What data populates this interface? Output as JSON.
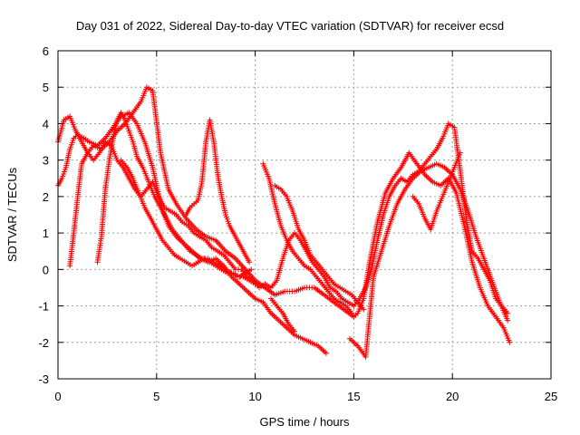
{
  "chart_data": {
    "type": "scatter",
    "title": "Day 031 of 2022, Sidereal Day-to-day VTEC variation (SDTVAR) for receiver ecsd",
    "xlabel": "GPS time / hours",
    "ylabel": "SDTVAR / TECUs",
    "xlim": [
      0,
      25
    ],
    "ylim": [
      -3,
      6
    ],
    "xticks": [
      0,
      5,
      10,
      15,
      20,
      25
    ],
    "yticks": [
      -3,
      -2,
      -1,
      0,
      1,
      2,
      3,
      4,
      5,
      6
    ],
    "grid": true,
    "marker": "+",
    "color": "#ff0000",
    "series": [
      {
        "name": "track-1",
        "x": [
          0.0,
          0.3,
          0.6,
          0.9,
          1.2,
          1.5,
          1.8,
          2.2,
          2.6,
          3.0,
          3.4,
          3.8,
          4.2,
          4.5,
          4.8,
          5.2,
          5.6,
          6.0,
          6.5,
          7.0,
          7.5,
          8.0,
          8.5,
          9.0,
          9.5,
          10.0,
          10.5,
          11.0,
          11.5,
          12.0,
          12.5,
          13.0,
          13.5,
          14.0,
          14.5,
          15.0,
          15.2,
          15.5,
          15.8,
          16.2,
          16.6,
          17.0,
          17.4,
          17.8,
          18.2,
          18.6,
          19.0,
          19.4,
          19.8,
          20.2,
          20.6,
          21.0,
          21.4,
          21.8,
          22.2,
          22.6,
          22.9
        ],
        "y": [
          3.5,
          4.1,
          4.2,
          3.8,
          3.5,
          3.2,
          3.4,
          3.3,
          3.5,
          3.8,
          4.0,
          4.3,
          4.6,
          5.0,
          4.9,
          3.2,
          2.2,
          1.8,
          1.4,
          1.1,
          0.9,
          0.8,
          0.5,
          0.3,
          0.0,
          -0.3,
          -0.5,
          -0.7,
          -0.6,
          -0.6,
          -0.5,
          -0.5,
          -0.7,
          -0.9,
          -1.1,
          -1.3,
          -1.2,
          -0.8,
          0.2,
          1.3,
          2.1,
          2.5,
          2.8,
          3.2,
          2.9,
          2.6,
          2.4,
          2.3,
          2.5,
          2.1,
          1.2,
          0.2,
          -0.5,
          -1.0,
          -1.3,
          -1.6,
          -2.0
        ]
      },
      {
        "name": "track-2",
        "x": [
          0.0,
          0.2,
          0.4,
          0.6,
          0.8,
          1.0,
          1.3,
          1.6,
          2.0,
          2.4,
          2.8,
          3.2,
          3.6,
          4.0,
          4.4,
          4.8,
          5.2,
          5.6,
          6.0,
          6.4,
          6.8,
          7.2,
          7.6,
          8.0,
          8.4,
          8.8,
          9.2,
          9.6,
          10.0,
          10.4,
          10.8,
          11.2,
          11.6,
          12.0,
          12.4,
          12.8,
          13.2,
          13.6,
          14.0,
          14.4,
          14.8,
          15.2,
          15.6,
          16.0,
          16.4,
          16.8,
          17.2,
          17.6,
          18.0,
          18.4,
          18.8,
          19.2,
          19.6,
          20.0,
          20.4,
          20.8,
          21.2,
          21.6,
          22.0,
          22.4,
          22.8
        ],
        "y": [
          2.3,
          2.5,
          2.8,
          3.3,
          3.6,
          3.7,
          3.6,
          3.5,
          3.4,
          3.6,
          3.9,
          4.2,
          4.3,
          4.0,
          3.5,
          2.8,
          1.8,
          1.2,
          0.9,
          0.7,
          0.5,
          0.3,
          0.2,
          0.3,
          0.1,
          -0.2,
          -0.4,
          -0.6,
          -0.8,
          -0.9,
          -1.2,
          -1.4,
          -1.6,
          -1.8,
          -1.9,
          -2.0,
          -2.1,
          -2.3,
          null,
          null,
          -1.9,
          -2.1,
          -2.4,
          -0.2,
          0.5,
          1.2,
          1.8,
          2.2,
          2.5,
          2.7,
          2.8,
          2.9,
          2.8,
          2.6,
          2.2,
          1.6,
          0.9,
          0.3,
          -0.3,
          -0.9,
          -1.4
        ]
      },
      {
        "name": "track-3",
        "x": [
          0.6,
          0.8,
          1.0,
          1.2,
          1.5,
          1.8,
          2.1,
          2.4,
          2.7,
          3.0,
          3.3,
          3.6,
          3.9,
          4.2,
          4.5,
          4.8,
          5.1,
          5.4,
          5.7,
          6.0,
          6.3,
          6.6,
          6.9,
          7.2,
          7.5,
          7.8,
          8.1,
          8.4,
          8.7,
          9.0,
          9.3,
          9.6,
          9.9,
          10.2,
          10.5,
          10.8,
          11.1,
          11.4,
          11.7,
          12.0,
          12.3,
          12.6,
          12.9,
          13.2,
          13.5,
          13.8,
          14.1,
          14.4,
          14.7,
          15.0,
          15.3,
          15.6,
          15.9,
          16.2,
          16.5,
          16.8,
          17.1,
          17.4,
          17.7,
          18.0,
          18.3,
          18.6,
          18.9,
          19.2,
          19.5,
          19.8,
          20.1,
          20.4,
          20.7,
          21.0,
          21.3,
          21.6,
          21.9,
          22.2,
          22.5,
          22.8
        ],
        "y": [
          0.1,
          1.0,
          2.0,
          2.9,
          3.2,
          3.0,
          3.2,
          3.5,
          3.4,
          3.0,
          2.8,
          2.5,
          2.2,
          2.0,
          2.2,
          2.4,
          2.0,
          1.7,
          1.6,
          1.5,
          1.3,
          1.2,
          1.0,
          0.9,
          0.8,
          0.6,
          0.5,
          0.4,
          0.2,
          0.0,
          0.0,
          -0.2,
          -0.3,
          -0.5,
          -0.4,
          -0.5,
          -0.3,
          0.3,
          0.8,
          1.0,
          0.8,
          0.5,
          0.2,
          0.0,
          -0.2,
          -0.5,
          -0.6,
          -0.8,
          -0.9,
          -1.0,
          -0.8,
          -0.5,
          0.0,
          0.8,
          1.5,
          2.0,
          2.3,
          2.5,
          2.4,
          2.6,
          2.7,
          2.9,
          3.1,
          3.3,
          3.6,
          4.0,
          3.9,
          2.7,
          1.4,
          0.5,
          0.3,
          0.0,
          -0.3,
          -0.8,
          -1.0,
          -1.2
        ]
      },
      {
        "name": "track-4",
        "x": [
          2.0,
          2.2,
          2.4,
          2.6,
          2.8,
          3.0,
          3.2,
          3.4,
          3.6,
          3.8,
          4.0,
          4.3,
          4.6,
          4.9,
          5.2,
          5.5,
          5.8,
          6.1,
          6.4,
          6.7,
          7.0,
          7.3,
          7.6,
          7.9,
          8.2,
          8.5,
          8.8,
          9.1,
          9.4,
          9.7,
          10.0
        ],
        "y": [
          0.2,
          0.9,
          2.2,
          3.0,
          3.6,
          4.1,
          4.3,
          4.1,
          3.8,
          3.5,
          3.1,
          2.8,
          2.4,
          2.0,
          1.7,
          1.4,
          1.1,
          0.9,
          0.7,
          0.5,
          0.4,
          0.3,
          0.3,
          0.2,
          0.1,
          0.0,
          -0.1,
          -0.2,
          -0.2,
          -0.3,
          -0.4
        ]
      },
      {
        "name": "track-5",
        "x": [
          3.2,
          3.5,
          3.8,
          4.1,
          4.4,
          4.7,
          5.0,
          5.3,
          5.6,
          5.9,
          6.2,
          6.5,
          6.8,
          7.1,
          7.4,
          7.7,
          8.0,
          8.3,
          8.6,
          8.9,
          9.2,
          9.5,
          9.8
        ],
        "y": [
          3.0,
          2.8,
          2.5,
          2.1,
          1.7,
          1.4,
          1.1,
          0.8,
          0.6,
          0.4,
          0.3,
          0.2,
          0.1,
          0.2,
          0.3,
          0.2,
          0.1,
          0.0,
          -0.1,
          -0.1,
          -0.2,
          -0.1,
          0.0
        ]
      },
      {
        "name": "track-6",
        "x": [
          6.5,
          6.7,
          6.9,
          7.1,
          7.3,
          7.5,
          7.7,
          7.9,
          8.1,
          8.3,
          8.5,
          8.7,
          8.9,
          9.1,
          9.3,
          9.5,
          9.7
        ],
        "y": [
          1.5,
          1.7,
          1.8,
          1.9,
          2.4,
          3.5,
          4.1,
          3.5,
          2.6,
          2.0,
          1.5,
          1.2,
          1.0,
          0.8,
          0.6,
          0.4,
          0.2
        ]
      },
      {
        "name": "track-7",
        "x": [
          10.4,
          10.7,
          11.0,
          11.3,
          11.6,
          11.9,
          12.2,
          12.5,
          12.8,
          13.1,
          13.4,
          13.7,
          14.0,
          14.3,
          14.6,
          14.9
        ],
        "y": [
          2.9,
          2.5,
          1.8,
          1.2,
          0.8,
          0.5,
          0.3,
          0.1,
          0.0,
          -0.2,
          -0.4,
          -0.6,
          -0.8,
          -0.9,
          -1.0,
          -1.2
        ]
      },
      {
        "name": "track-8",
        "x": [
          11.0,
          11.3,
          11.6,
          11.9,
          12.2,
          12.5,
          12.8,
          13.1,
          13.4,
          13.7,
          14.0,
          14.3,
          14.6,
          14.9,
          15.2,
          15.5
        ],
        "y": [
          2.3,
          2.2,
          2.0,
          1.6,
          1.1,
          0.8,
          0.4,
          0.2,
          0.0,
          -0.2,
          -0.4,
          -0.5,
          -0.6,
          -0.7,
          -0.9,
          -1.1
        ]
      },
      {
        "name": "track-9",
        "x": [
          10.8,
          11.1,
          11.4,
          11.7,
          12.0
        ],
        "y": [
          -0.8,
          -1.0,
          -1.2,
          -1.5,
          -1.7
        ]
      },
      {
        "name": "track-10",
        "x": [
          18.0,
          18.3,
          18.6,
          18.9,
          19.2,
          19.5,
          19.8,
          20.1,
          20.4
        ],
        "y": [
          2.0,
          1.8,
          1.4,
          1.1,
          1.6,
          2.0,
          2.4,
          2.8,
          3.2
        ]
      }
    ]
  }
}
